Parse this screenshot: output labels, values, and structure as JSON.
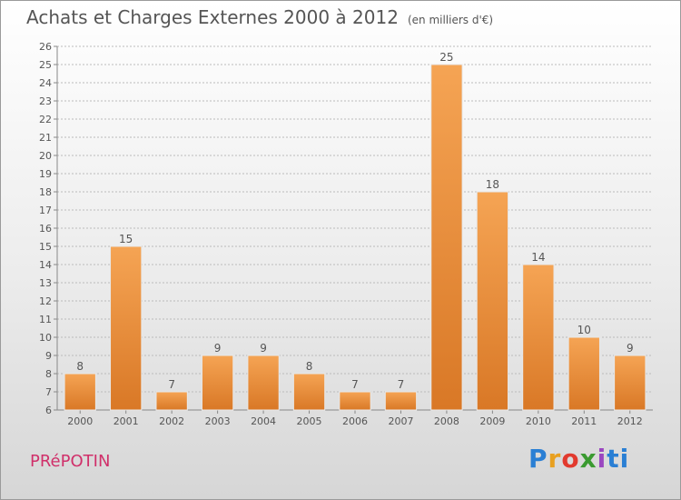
{
  "title": "Achats et Charges Externes 2000 à 2012",
  "units": "(en milliers d'€)",
  "place": "PRéPOTIN",
  "logo": "Proxiti",
  "colors": {
    "bar_light": "#f5a454",
    "bar_dark": "#d97826",
    "grid": "#bbbbbb",
    "text": "#555555",
    "place": "#d0306a"
  },
  "chart_data": {
    "type": "bar",
    "title": "Achats et Charges Externes 2000 à 2012",
    "subtitle": "(en milliers d'€)",
    "xlabel": "",
    "ylabel": "",
    "categories": [
      "2000",
      "2001",
      "2002",
      "2003",
      "2004",
      "2005",
      "2006",
      "2007",
      "2008",
      "2009",
      "2010",
      "2011",
      "2012"
    ],
    "values": [
      8,
      15,
      7,
      9,
      9,
      8,
      7,
      7,
      25,
      18,
      14,
      10,
      9
    ],
    "ylim": [
      6,
      26
    ],
    "yticks": [
      6,
      7,
      8,
      9,
      10,
      11,
      12,
      13,
      14,
      15,
      16,
      17,
      18,
      19,
      20,
      21,
      22,
      23,
      24,
      25,
      26
    ],
    "grid": true,
    "legend": "none"
  }
}
